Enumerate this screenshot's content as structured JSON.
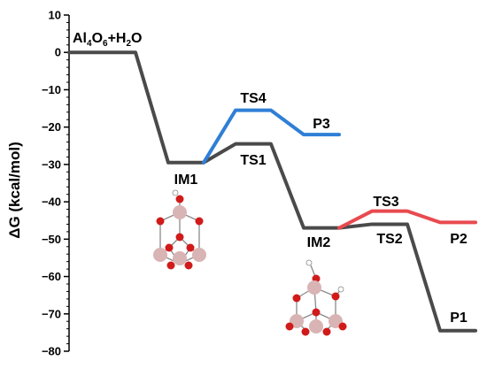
{
  "chart_data": {
    "type": "line",
    "title": "",
    "xlabel": "",
    "ylabel": "ΔG (kcal/mol)",
    "ylim": [
      -80,
      10
    ],
    "yticks": [
      "10",
      "0",
      "−10",
      "−20",
      "−30",
      "−40",
      "−50",
      "−60",
      "−70",
      "−80"
    ],
    "grid": false,
    "states": [
      {
        "id": "reactant",
        "label": "Al4O6+H2O",
        "label_main": "Al",
        "sub1": "4",
        "label_mid": "O",
        "sub2": "6",
        "label_end": "+H",
        "sub3": "2",
        "label_tail": "O",
        "energy": 0
      },
      {
        "id": "IM1",
        "label": "IM1",
        "energy": -29.5
      },
      {
        "id": "TS1",
        "label": "TS1",
        "energy": -24.5
      },
      {
        "id": "IM2",
        "label": "IM2",
        "energy": -47
      },
      {
        "id": "TS2",
        "label": "TS2",
        "energy": -46
      },
      {
        "id": "P1",
        "label": "P1",
        "energy": -74.5
      },
      {
        "id": "TS3",
        "label": "TS3",
        "energy": -42.5
      },
      {
        "id": "P2",
        "label": "P2",
        "energy": -45.5
      },
      {
        "id": "TS4",
        "label": "TS4",
        "energy": -15.5
      },
      {
        "id": "P3",
        "label": "P3",
        "energy": -22
      }
    ],
    "series": [
      {
        "color": "#4a4a4a",
        "path": [
          "reactant",
          "IM1",
          "TS1",
          "IM2",
          "TS2",
          "P1"
        ]
      },
      {
        "color": "#2f7fd6",
        "path": [
          "IM1",
          "TS4",
          "P3"
        ]
      },
      {
        "color": "#e84a4f",
        "path": [
          "IM2",
          "TS3",
          "P2"
        ]
      }
    ],
    "colors": {
      "atom_al": "#d9b4b4",
      "atom_o": "#d11a1a",
      "atom_h": "#ffffff"
    }
  }
}
